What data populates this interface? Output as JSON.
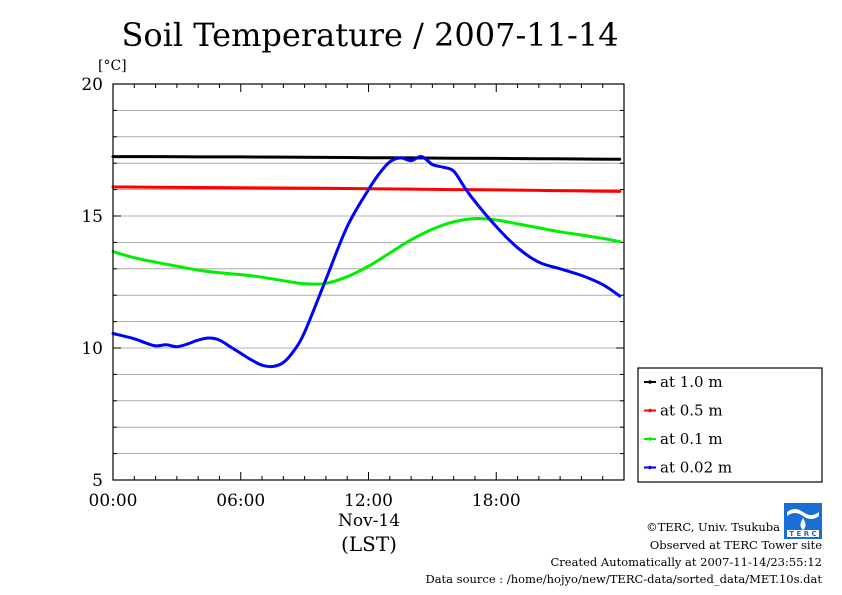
{
  "chart_data": {
    "type": "line",
    "title": "Soil Temperature / 2007-11-14",
    "ylabel": "[°C]",
    "xlabel": "(LST)",
    "date_label": "Nov-14",
    "ylim": [
      5,
      20
    ],
    "xlim": [
      0,
      24
    ],
    "yticks": [
      {
        "value": 5,
        "label": "5"
      },
      {
        "value": 10,
        "label": "10"
      },
      {
        "value": 15,
        "label": "15"
      },
      {
        "value": 20,
        "label": "20"
      }
    ],
    "xticks": [
      {
        "value": 0,
        "label": "00:00"
      },
      {
        "value": 6,
        "label": "06:00"
      },
      {
        "value": 12,
        "label": "12:00"
      },
      {
        "value": 18,
        "label": "18:00"
      }
    ],
    "grid": true,
    "legend_position": "right-bottom-outside",
    "series": [
      {
        "name": "at 1.0 m",
        "color": "#000000",
        "x": [
          0,
          2,
          4,
          6,
          8,
          10,
          12,
          14,
          16,
          18,
          20,
          22,
          23.8
        ],
        "y": [
          17.25,
          17.25,
          17.24,
          17.24,
          17.23,
          17.22,
          17.21,
          17.2,
          17.19,
          17.18,
          17.17,
          17.16,
          17.15
        ]
      },
      {
        "name": "at 0.5 m",
        "color": "#ff0000",
        "x": [
          0,
          2,
          4,
          6,
          8,
          10,
          12,
          14,
          16,
          18,
          20,
          22,
          23.8
        ],
        "y": [
          16.1,
          16.09,
          16.08,
          16.07,
          16.06,
          16.05,
          16.03,
          16.02,
          16.0,
          15.99,
          15.97,
          15.95,
          15.93
        ]
      },
      {
        "name": "at 0.1 m",
        "color": "#00ee00",
        "x": [
          0,
          1,
          2,
          3,
          4,
          5,
          6,
          7,
          8,
          9,
          10,
          11,
          12,
          13,
          14,
          15,
          16,
          17,
          18,
          19,
          20,
          21,
          22,
          23,
          23.8
        ],
        "y": [
          13.65,
          13.42,
          13.25,
          13.1,
          12.95,
          12.85,
          12.78,
          12.68,
          12.55,
          12.43,
          12.45,
          12.7,
          13.1,
          13.6,
          14.1,
          14.5,
          14.78,
          14.9,
          14.85,
          14.7,
          14.55,
          14.4,
          14.28,
          14.15,
          14.03
        ]
      },
      {
        "name": "at 0.02 m",
        "color": "#0000ff",
        "x": [
          0,
          1,
          1.5,
          2,
          2.5,
          3,
          3.5,
          4,
          4.5,
          5,
          5.5,
          6,
          6.5,
          7,
          7.5,
          8,
          8.5,
          9,
          10,
          11,
          12,
          12.5,
          13,
          13.5,
          14,
          14.5,
          15,
          15.5,
          16,
          16.5,
          17,
          18,
          19,
          20,
          21,
          22,
          23,
          23.8
        ],
        "y": [
          10.55,
          10.35,
          10.2,
          10.08,
          10.12,
          10.05,
          10.15,
          10.3,
          10.38,
          10.3,
          10.05,
          9.8,
          9.55,
          9.35,
          9.3,
          9.45,
          9.9,
          10.6,
          12.6,
          14.6,
          16.0,
          16.6,
          17.05,
          17.2,
          17.1,
          17.25,
          16.95,
          16.85,
          16.7,
          16.1,
          15.55,
          14.6,
          13.8,
          13.25,
          13.0,
          12.75,
          12.4,
          11.97
        ]
      }
    ]
  },
  "footer": {
    "copyright": "©TERC, Univ. Tsukuba",
    "observed": "Observed at TERC Tower site",
    "created": "Created Automatically at 2007-11-14/23:55:12",
    "source": "Data source : /home/hojyo/new/TERC-data/sorted_data/MET.10s.dat",
    "logo_text": "T E R C"
  }
}
